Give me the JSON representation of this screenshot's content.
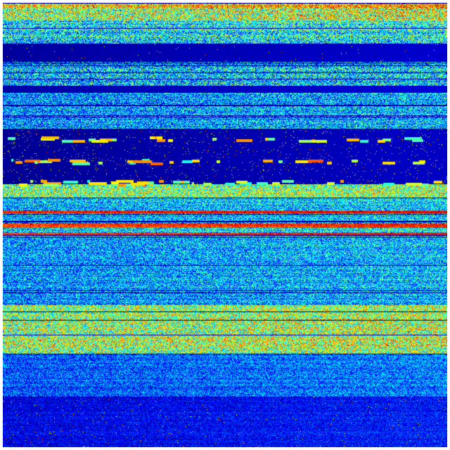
{
  "image": {
    "colormap": "jet",
    "background_color": "#ffffff",
    "low_color": "#00008f",
    "high_color": "#800000"
  }
}
